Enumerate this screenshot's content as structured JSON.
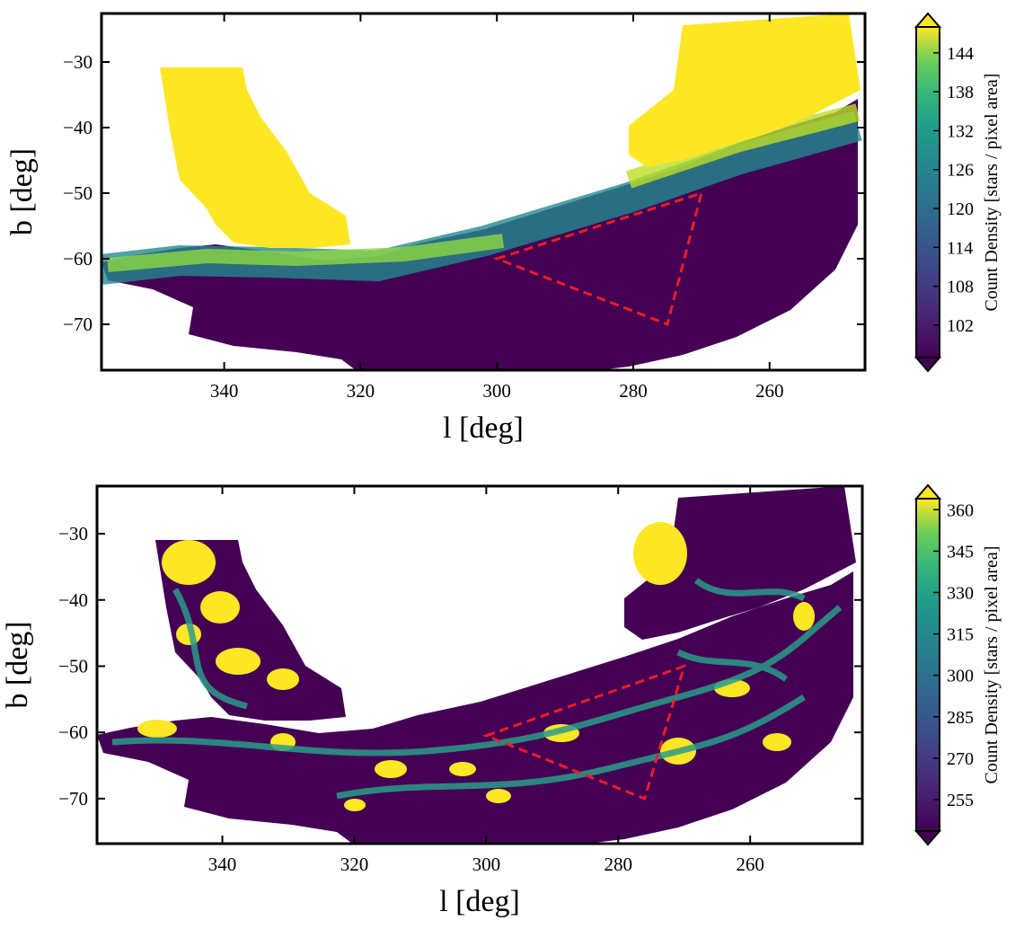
{
  "chart_data": [
    {
      "type": "heatmap",
      "xlabel": "l [deg]",
      "ylabel": "b [deg]",
      "xlim": [
        358,
        246
      ],
      "ylim": [
        -77,
        -22.6
      ],
      "xticks": [
        340,
        320,
        300,
        280,
        260
      ],
      "yticks": [
        {
          "value": -30,
          "label": "−30"
        },
        {
          "value": -40,
          "label": "−40"
        },
        {
          "value": -50,
          "label": "−50"
        },
        {
          "value": -60,
          "label": "−60"
        },
        {
          "value": -70,
          "label": "−70"
        }
      ],
      "colormap": "viridis",
      "colorbar_label": "Count Density [stars / pixel area]",
      "clim": [
        97,
        148
      ],
      "cticks": [
        102,
        108,
        114,
        120,
        126,
        132,
        138,
        144
      ],
      "region": {
        "color": "#ee1c25",
        "l": [
          300,
          270,
          275
        ],
        "b": [
          -60,
          -50,
          -70
        ]
      }
    },
    {
      "type": "heatmap",
      "xlabel": "l [deg]",
      "ylabel": "b [deg]",
      "xlim": [
        359,
        243
      ],
      "ylim": [
        -76.8,
        -22.8
      ],
      "xticks": [
        340,
        320,
        300,
        280,
        260
      ],
      "yticks": [
        {
          "value": -30,
          "label": "−30"
        },
        {
          "value": -40,
          "label": "−40"
        },
        {
          "value": -50,
          "label": "−50"
        },
        {
          "value": -60,
          "label": "−60"
        },
        {
          "value": -70,
          "label": "−70"
        }
      ],
      "colormap": "viridis",
      "colorbar_label": "Count Density [stars / pixel area]",
      "clim": [
        243.6,
        364
      ],
      "cticks": [
        255,
        270,
        285,
        300,
        315,
        330,
        345,
        360
      ],
      "region": {
        "color": "#ee1c25",
        "l": [
          300,
          270,
          276
        ],
        "b": [
          -60.5,
          -50,
          -70
        ]
      }
    }
  ]
}
